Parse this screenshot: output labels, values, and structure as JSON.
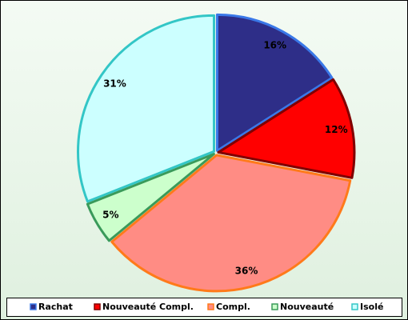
{
  "chart_data": {
    "type": "pie",
    "categories": [
      "Rachat",
      "Nouveauté Compl.",
      "Compl.",
      "Nouveauté",
      "Isolé"
    ],
    "values": [
      16,
      12,
      36,
      5,
      31
    ],
    "value_labels": [
      "16%",
      "12%",
      "36%",
      "5%",
      "31%"
    ],
    "colors": [
      "#2e2e88",
      "#ff0000",
      "#ff8c84",
      "#ccffcc",
      "#ccffff"
    ],
    "edge_colors": [
      "#3a78e8",
      "#800000",
      "#ff7a1a",
      "#3a9a5a",
      "#33c6c6"
    ]
  }
}
